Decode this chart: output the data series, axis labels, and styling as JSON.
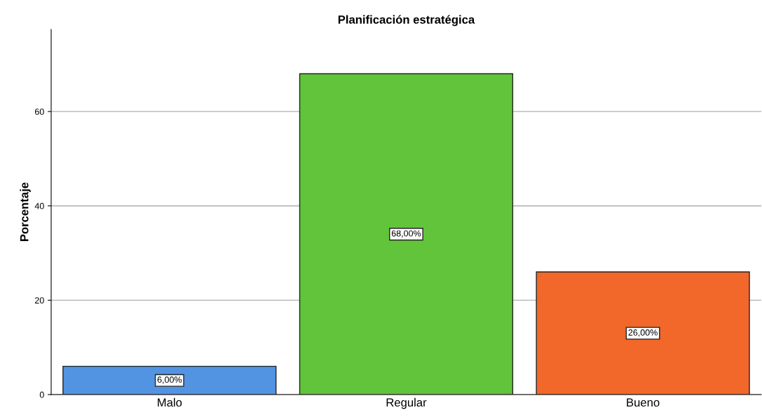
{
  "chart_data": {
    "type": "bar",
    "title": "Planificación estratégica",
    "ylabel": "Porcentaje",
    "categories": [
      "Malo",
      "Regular",
      "Bueno"
    ],
    "values": [
      6,
      68,
      26
    ],
    "colors": [
      "#5294e2",
      "#62c43a",
      "#f2672a"
    ],
    "value_labels": [
      "6,00%",
      "68,00%",
      "26,00%"
    ],
    "ylim": [
      0,
      77.4
    ],
    "yticks": [
      0,
      20,
      40,
      60
    ],
    "grid": "y"
  }
}
